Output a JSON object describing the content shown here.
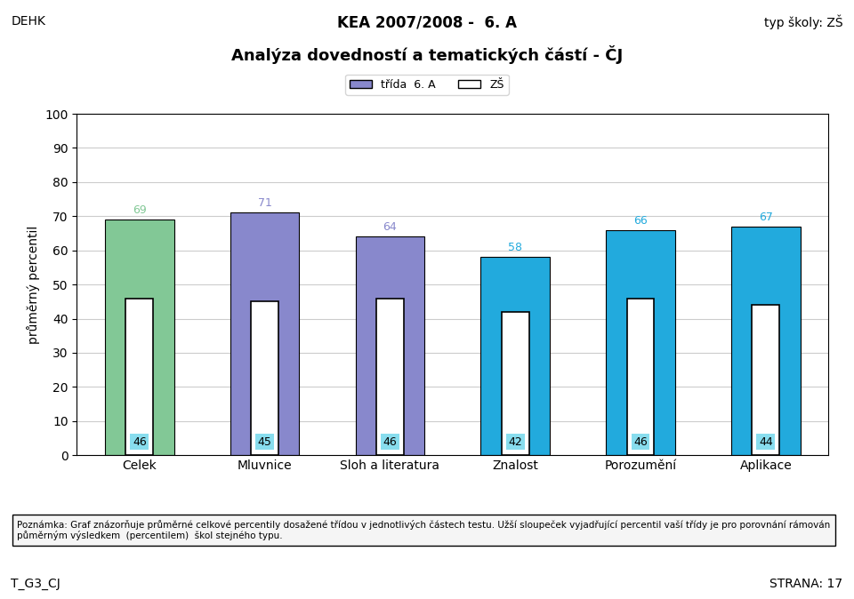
{
  "chart_data": {
    "type": "bar",
    "title": "Analýza dovedností a tematických částí - ČJ",
    "annotations": [
      "DEHK",
      "KEA 2007/2008 -  6. A",
      "typ školy: ZŠ",
      "Poznámka: Graf znázorňuje průměrné celkové percentily dosažené třídou v jednotlivých částech testu. Užší sloupeček vyjadřující percentil vaší třídy je pro porovnání rámován\npůměrným výsledkem  (percentilem)  škol stejného typu.",
      "T_G3_CJ",
      "STRANA: 17"
    ],
    "categories": [
      "Celek",
      "Mluvnice",
      "Sloh a literatura",
      "Znalost",
      "Porozumění",
      "Aplikace"
    ],
    "series": [
      {
        "name": "třída  6. A",
        "color": "#8888CC",
        "colors": [
          "#82C896",
          "#8888CC",
          "#8888CC",
          "#22AADD",
          "#22AADD",
          "#22AADD"
        ],
        "values": [
          69,
          71,
          64,
          58,
          66,
          67
        ]
      },
      {
        "name": "ZŠ",
        "color": "#FFFFFF",
        "values": [
          46,
          45,
          46,
          42,
          46,
          44
        ]
      }
    ],
    "ylabel": "průměrný percentil",
    "ylim": [
      0,
      100
    ],
    "yticks": [
      0,
      10,
      20,
      30,
      40,
      50,
      60,
      70,
      80,
      90,
      100
    ],
    "grid": true,
    "legend": "upper center",
    "data_labels": true
  }
}
